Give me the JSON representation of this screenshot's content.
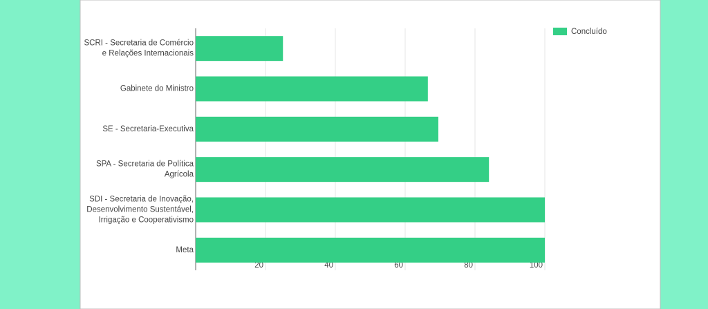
{
  "chart_data": {
    "type": "bar",
    "orientation": "horizontal",
    "categories": [
      [
        "SCRI - Secretaria de Comércio",
        "e Relações Internacionais"
      ],
      [
        "Gabinete do Ministro"
      ],
      [
        "SE - Secretaria-Executiva"
      ],
      [
        "SPA - Secretaria de Política",
        "Agrícola"
      ],
      [
        "SDI - Secretaria de Inovação,",
        "Desenvolvimento Sustentável,",
        "Irrigação e Cooperativismo"
      ],
      [
        "Meta"
      ]
    ],
    "series": [
      {
        "name": "Concluído",
        "color": "#34cf86",
        "values": [
          25,
          66.5,
          69.5,
          84,
          100,
          100
        ]
      }
    ],
    "xlim": [
      0,
      100
    ],
    "xticks": [
      20,
      40,
      60,
      80,
      100
    ],
    "grid": true,
    "legend": "top-right"
  }
}
